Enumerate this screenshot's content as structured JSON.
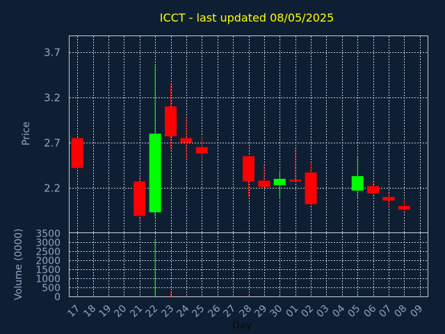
{
  "chart_data": {
    "type": "candlestick",
    "title": "ICCT - last updated 08/05/2025",
    "ylabel_price": "Price",
    "ylabel_volume": "Volume (0000)",
    "xlabel": "Day",
    "price_ticks": [
      2.2,
      2.7,
      3.2,
      3.7
    ],
    "volume_ticks": [
      0,
      500,
      1000,
      1500,
      2000,
      2500,
      3000,
      3500
    ],
    "days": [
      "17",
      "18",
      "19",
      "20",
      "21",
      "22",
      "23",
      "24",
      "25",
      "26",
      "27",
      "28",
      "29",
      "30",
      "01",
      "02",
      "03",
      "04",
      "05",
      "06",
      "07",
      "08",
      "09"
    ],
    "colors": {
      "up": "#00ff00",
      "down": "#ff0000",
      "background": "#0f1f33",
      "plot_border": "#c8d0dc",
      "grid": "#c8d0dc",
      "title": "#ffff00"
    },
    "candles": [
      {
        "day": "17",
        "open": 2.75,
        "close": 2.42,
        "high": 2.75,
        "low": 2.42,
        "volume": 20
      },
      {
        "day": "21",
        "open": 2.27,
        "close": 1.89,
        "high": 2.33,
        "low": 1.83,
        "volume": 30
      },
      {
        "day": "22",
        "open": 1.93,
        "close": 2.8,
        "high": 3.55,
        "low": 1.88,
        "volume": 3150
      },
      {
        "day": "23",
        "open": 3.1,
        "close": 2.77,
        "high": 3.35,
        "low": 2.62,
        "volume": 300
      },
      {
        "day": "24",
        "open": 2.75,
        "close": 2.7,
        "high": 2.98,
        "low": 2.52,
        "volume": 80
      },
      {
        "day": "25",
        "open": 2.65,
        "close": 2.58,
        "high": 2.77,
        "low": 2.5,
        "volume": 50
      },
      {
        "day": "28",
        "open": 2.55,
        "close": 2.27,
        "high": 2.55,
        "low": 2.1,
        "volume": 60
      },
      {
        "day": "29",
        "open": 2.28,
        "close": 2.21,
        "high": 2.45,
        "low": 2.21,
        "volume": 40
      },
      {
        "day": "30",
        "open": 2.23,
        "close": 2.3,
        "high": 2.38,
        "low": 2.08,
        "volume": 40
      },
      {
        "day": "01",
        "open": 2.29,
        "close": 2.27,
        "high": 2.65,
        "low": 2.27,
        "volume": 30
      },
      {
        "day": "02",
        "open": 2.37,
        "close": 2.02,
        "high": 2.48,
        "low": 2.0,
        "volume": 70
      },
      {
        "day": "05",
        "open": 2.17,
        "close": 2.33,
        "high": 2.55,
        "low": 2.09,
        "volume": 150
      },
      {
        "day": "06",
        "open": 2.22,
        "close": 2.14,
        "high": 2.28,
        "low": 2.12,
        "volume": 40
      },
      {
        "day": "07",
        "open": 2.1,
        "close": 2.06,
        "high": 2.14,
        "low": 1.99,
        "volume": 30
      },
      {
        "day": "08",
        "open": 2.0,
        "close": 1.96,
        "high": 2.08,
        "low": 1.94,
        "volume": 30
      }
    ]
  }
}
